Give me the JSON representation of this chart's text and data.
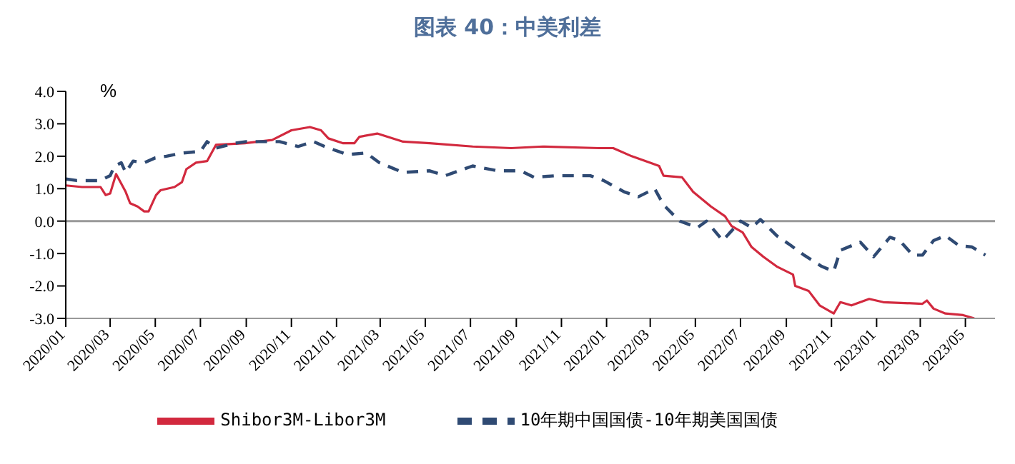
{
  "chart_data": {
    "type": "line",
    "title": "图表 40：中美利差",
    "ylabel": "%",
    "xlim": [
      "2020-01-01",
      "2023-06-10"
    ],
    "xticks": [
      {
        "value": "2020-01-01",
        "label": "2020/01"
      },
      {
        "value": "2020-03-01",
        "label": "2020/03"
      },
      {
        "value": "2020-05-01",
        "label": "2020/05"
      },
      {
        "value": "2020-07-01",
        "label": "2020/07"
      },
      {
        "value": "2020-09-01",
        "label": "2020/09"
      },
      {
        "value": "2020-11-01",
        "label": "2020/11"
      },
      {
        "value": "2021-01-01",
        "label": "2021/01"
      },
      {
        "value": "2021-03-01",
        "label": "2021/03"
      },
      {
        "value": "2021-05-01",
        "label": "2021/05"
      },
      {
        "value": "2021-07-01",
        "label": "2021/07"
      },
      {
        "value": "2021-09-01",
        "label": "2021/09"
      },
      {
        "value": "2021-11-01",
        "label": "2021/11"
      },
      {
        "value": "2022-01-01",
        "label": "2022/01"
      },
      {
        "value": "2022-03-01",
        "label": "2022/03"
      },
      {
        "value": "2022-05-01",
        "label": "2022/05"
      },
      {
        "value": "2022-07-01",
        "label": "2022/07"
      },
      {
        "value": "2022-09-01",
        "label": "2022/09"
      },
      {
        "value": "2022-11-01",
        "label": "2022/11"
      },
      {
        "value": "2023-01-01",
        "label": "2023/01"
      },
      {
        "value": "2023-03-01",
        "label": "2023/03"
      },
      {
        "value": "2023-05-01",
        "label": "2023/05"
      }
    ],
    "ylim": [
      -3,
      4
    ],
    "yticks": [
      {
        "value": -3,
        "label": "-3.0"
      },
      {
        "value": -2,
        "label": "-2.0"
      },
      {
        "value": -1,
        "label": "-1.0"
      },
      {
        "value": 0,
        "label": "0.0"
      },
      {
        "value": 1,
        "label": "1.0"
      },
      {
        "value": 2,
        "label": "2.0"
      },
      {
        "value": 3,
        "label": "3.0"
      },
      {
        "value": 4,
        "label": "4.0"
      }
    ],
    "grid": false,
    "legend": "bottom",
    "marker": "none",
    "ref_lines": [
      {
        "axis": "y",
        "value": 0,
        "color": "#999999"
      }
    ],
    "series": [
      {
        "name": "Shibor3M-Libor3M",
        "color": "#d2293e",
        "line_style": "solid",
        "x": [
          "2020-01-01",
          "2020-01-23",
          "2020-02-17",
          "2020-02-24",
          "2020-03-01",
          "2020-03-09",
          "2020-03-15",
          "2020-03-22",
          "2020-03-28",
          "2020-04-07",
          "2020-04-16",
          "2020-04-22",
          "2020-05-02",
          "2020-05-08",
          "2020-05-27",
          "2020-06-06",
          "2020-06-12",
          "2020-06-25",
          "2020-07-10",
          "2020-07-22",
          "2020-08-30",
          "2020-10-06",
          "2020-11-01",
          "2020-11-26",
          "2020-12-11",
          "2020-12-21",
          "2021-01-10",
          "2021-01-25",
          "2021-02-01",
          "2021-02-25",
          "2021-04-01",
          "2021-05-07",
          "2021-07-04",
          "2021-08-25",
          "2021-10-07",
          "2021-12-22",
          "2022-01-10",
          "2022-02-04",
          "2022-03-01",
          "2022-03-13",
          "2022-03-19",
          "2022-04-13",
          "2022-04-28",
          "2022-05-22",
          "2022-06-10",
          "2022-06-19",
          "2022-07-04",
          "2022-07-16",
          "2022-08-01",
          "2022-08-19",
          "2022-09-10",
          "2022-09-13",
          "2022-10-01",
          "2022-10-16",
          "2022-11-04",
          "2022-11-13",
          "2022-11-28",
          "2022-12-22",
          "2023-01-10",
          "2023-03-04",
          "2023-03-10",
          "2023-03-19",
          "2023-04-04",
          "2023-04-28",
          "2023-05-13"
        ],
        "values": [
          1.1,
          1.05,
          1.05,
          0.8,
          0.85,
          1.45,
          1.2,
          0.9,
          0.55,
          0.45,
          0.3,
          0.3,
          0.8,
          0.95,
          1.05,
          1.2,
          1.6,
          1.8,
          1.85,
          2.35,
          2.4,
          2.5,
          2.8,
          2.9,
          2.8,
          2.55,
          2.4,
          2.4,
          2.6,
          2.7,
          2.45,
          2.4,
          2.3,
          2.25,
          2.3,
          2.25,
          2.25,
          2.0,
          1.8,
          1.7,
          1.4,
          1.35,
          0.9,
          0.45,
          0.15,
          -0.15,
          -0.35,
          -0.8,
          -1.1,
          -1.4,
          -1.65,
          -2.0,
          -2.15,
          -2.6,
          -2.85,
          -2.5,
          -2.6,
          -2.4,
          -2.5,
          -2.55,
          -2.45,
          -2.7,
          -2.85,
          -2.9,
          -3.0
        ]
      },
      {
        "name": "10年期中国国债-10年期美国国债",
        "color": "#2f4a73",
        "line_style": "dashed",
        "x": [
          "2020-01-01",
          "2020-01-16",
          "2020-02-16",
          "2020-03-01",
          "2020-03-07",
          "2020-03-16",
          "2020-03-22",
          "2020-04-01",
          "2020-04-16",
          "2020-05-01",
          "2020-05-16",
          "2020-06-07",
          "2020-07-01",
          "2020-07-10",
          "2020-07-22",
          "2020-08-16",
          "2020-09-01",
          "2020-10-16",
          "2020-11-10",
          "2020-12-01",
          "2020-12-16",
          "2020-12-28",
          "2021-01-16",
          "2021-02-10",
          "2021-02-28",
          "2021-04-01",
          "2021-05-07",
          "2021-05-28",
          "2021-07-04",
          "2021-08-07",
          "2021-09-07",
          "2021-09-25",
          "2021-10-25",
          "2021-12-10",
          "2021-12-28",
          "2022-01-25",
          "2022-02-13",
          "2022-03-07",
          "2022-03-19",
          "2022-04-01",
          "2022-04-10",
          "2022-05-04",
          "2022-05-16",
          "2022-06-07",
          "2022-07-01",
          "2022-07-16",
          "2022-07-28",
          "2022-08-19",
          "2022-09-07",
          "2022-09-25",
          "2022-10-19",
          "2022-11-04",
          "2022-11-13",
          "2022-12-10",
          "2022-12-28",
          "2023-01-19",
          "2023-02-01",
          "2023-02-19",
          "2023-03-04",
          "2023-03-19",
          "2023-04-04",
          "2023-04-22",
          "2023-05-10",
          "2023-05-28"
        ],
        "values": [
          1.3,
          1.25,
          1.25,
          1.4,
          1.7,
          1.8,
          1.5,
          1.85,
          1.8,
          1.95,
          2.0,
          2.1,
          2.15,
          2.45,
          2.25,
          2.4,
          2.45,
          2.45,
          2.3,
          2.45,
          2.3,
          2.2,
          2.05,
          2.1,
          1.8,
          1.5,
          1.55,
          1.4,
          1.7,
          1.55,
          1.55,
          1.35,
          1.4,
          1.4,
          1.25,
          0.9,
          0.75,
          1.0,
          0.5,
          0.2,
          0.0,
          -0.2,
          0.0,
          -0.6,
          0.0,
          -0.2,
          0.05,
          -0.45,
          -0.75,
          -1.05,
          -1.4,
          -1.55,
          -0.9,
          -0.65,
          -1.1,
          -0.5,
          -0.6,
          -1.05,
          -1.05,
          -0.6,
          -0.45,
          -0.75,
          -0.8,
          -1.05
        ]
      }
    ]
  }
}
